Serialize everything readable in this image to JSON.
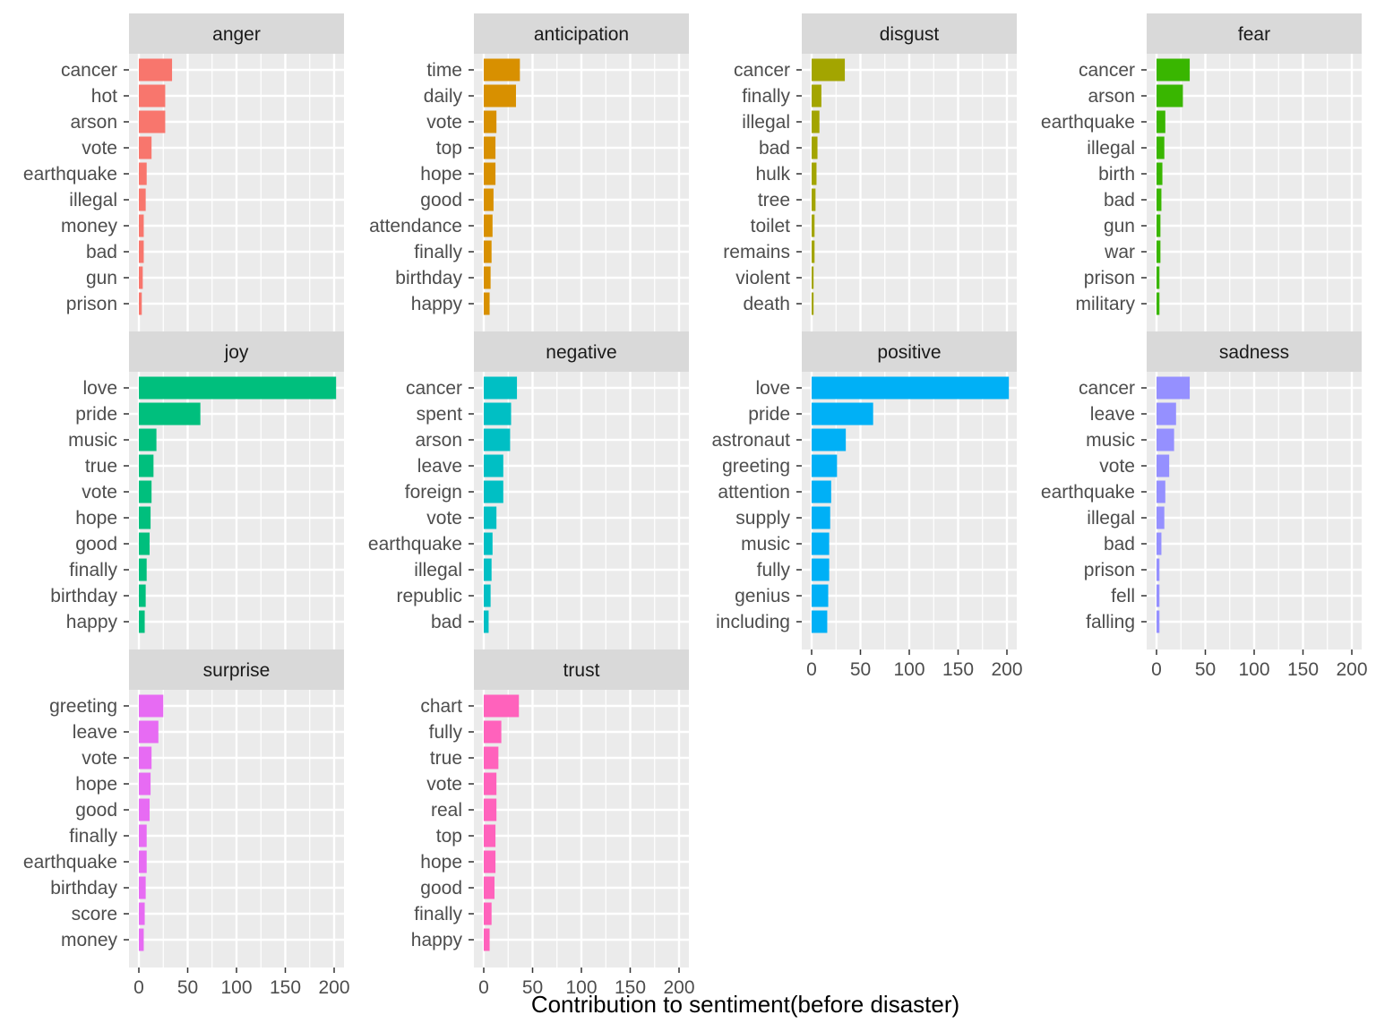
{
  "chart_data": {
    "type": "bar",
    "orientation": "horizontal",
    "xlabel": "Contribution to sentiment(before disaster)",
    "xlim": [
      0,
      200
    ],
    "x_ticks": [
      "0",
      "50",
      "100",
      "150",
      "200"
    ],
    "grid": true,
    "legend": "none",
    "panels": [
      {
        "title": "anger",
        "color": "#F8766D",
        "categories": [
          "cancer",
          "hot",
          "arson",
          "vote",
          "earthquake",
          "illegal",
          "money",
          "bad",
          "gun",
          "prison"
        ],
        "values": [
          34,
          27,
          27,
          13,
          8,
          7,
          5,
          5,
          4,
          3
        ]
      },
      {
        "title": "anticipation",
        "color": "#D89000",
        "categories": [
          "time",
          "daily",
          "vote",
          "top",
          "hope",
          "good",
          "attendance",
          "finally",
          "birthday",
          "happy"
        ],
        "values": [
          37,
          33,
          13,
          12,
          12,
          10,
          9,
          8,
          7,
          6
        ]
      },
      {
        "title": "disgust",
        "color": "#A3A500",
        "categories": [
          "cancer",
          "finally",
          "illegal",
          "bad",
          "hulk",
          "tree",
          "toilet",
          "remains",
          "violent",
          "death"
        ],
        "values": [
          34,
          10,
          8,
          6,
          5,
          4,
          3,
          3,
          2,
          2
        ]
      },
      {
        "title": "fear",
        "color": "#39B600",
        "categories": [
          "cancer",
          "arson",
          "earthquake",
          "illegal",
          "birth",
          "bad",
          "gun",
          "war",
          "prison",
          "military"
        ],
        "values": [
          34,
          27,
          9,
          8,
          6,
          5,
          4,
          4,
          3,
          3
        ]
      },
      {
        "title": "joy",
        "color": "#00BF7D",
        "categories": [
          "love",
          "pride",
          "music",
          "true",
          "vote",
          "hope",
          "good",
          "finally",
          "birthday",
          "happy"
        ],
        "values": [
          202,
          63,
          18,
          15,
          13,
          12,
          11,
          8,
          7,
          6
        ]
      },
      {
        "title": "negative",
        "color": "#00BFC4",
        "categories": [
          "cancer",
          "spent",
          "arson",
          "leave",
          "foreign",
          "vote",
          "earthquake",
          "illegal",
          "republic",
          "bad"
        ],
        "values": [
          34,
          28,
          27,
          20,
          20,
          13,
          9,
          8,
          7,
          5
        ]
      },
      {
        "title": "positive",
        "color": "#00B0F6",
        "categories": [
          "love",
          "pride",
          "astronaut",
          "greeting",
          "attention",
          "supply",
          "music",
          "fully",
          "genius",
          "including"
        ],
        "values": [
          202,
          63,
          35,
          26,
          20,
          19,
          18,
          18,
          17,
          16
        ]
      },
      {
        "title": "sadness",
        "color": "#9590FF",
        "categories": [
          "cancer",
          "leave",
          "music",
          "vote",
          "earthquake",
          "illegal",
          "bad",
          "prison",
          "fell",
          "falling"
        ],
        "values": [
          34,
          20,
          18,
          13,
          9,
          8,
          5,
          3,
          3,
          3
        ]
      },
      {
        "title": "surprise",
        "color": "#E76BF3",
        "categories": [
          "greeting",
          "leave",
          "vote",
          "hope",
          "good",
          "finally",
          "earthquake",
          "birthday",
          "score",
          "money"
        ],
        "values": [
          25,
          20,
          13,
          12,
          11,
          8,
          8,
          7,
          6,
          5
        ]
      },
      {
        "title": "trust",
        "color": "#FF62BC",
        "categories": [
          "chart",
          "fully",
          "true",
          "vote",
          "real",
          "top",
          "hope",
          "good",
          "finally",
          "happy"
        ],
        "values": [
          36,
          18,
          15,
          13,
          13,
          12,
          12,
          11,
          8,
          6
        ]
      }
    ]
  }
}
